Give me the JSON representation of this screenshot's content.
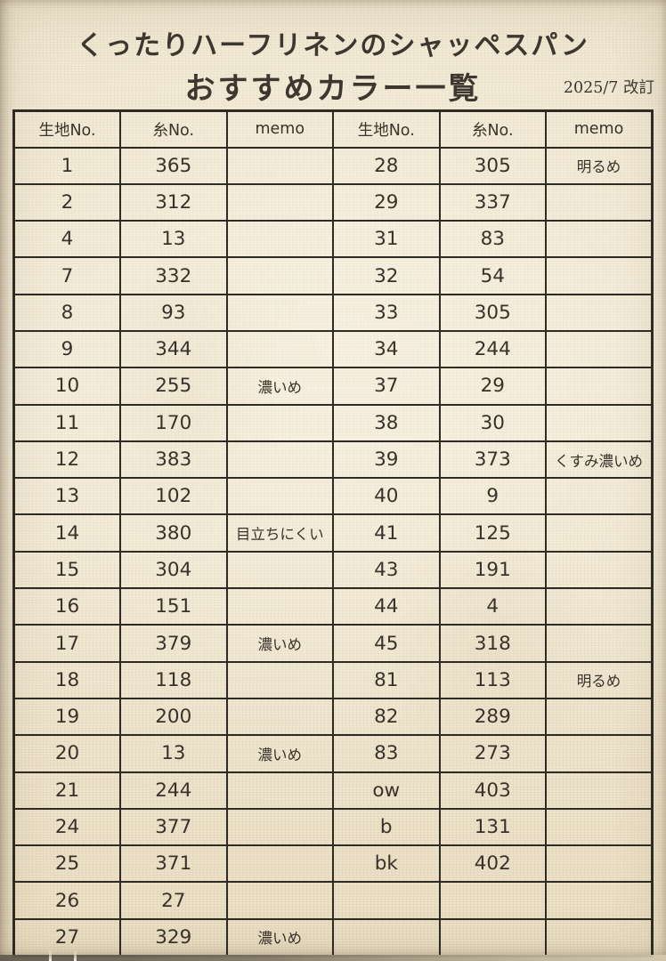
{
  "header": {
    "title_line1": "くったりハーフリネンのシャッペスパン",
    "title_line2": "おすすめカラー一覧",
    "revision": "2025/7 改訂"
  },
  "table": {
    "headers": [
      "生地No.",
      "糸No.",
      "memo",
      "生地No.",
      "糸No.",
      "memo"
    ],
    "rows": [
      [
        "1",
        "365",
        "",
        "28",
        "305",
        "明るめ"
      ],
      [
        "2",
        "312",
        "",
        "29",
        "337",
        ""
      ],
      [
        "4",
        "13",
        "",
        "31",
        "83",
        ""
      ],
      [
        "7",
        "332",
        "",
        "32",
        "54",
        ""
      ],
      [
        "8",
        "93",
        "",
        "33",
        "305",
        ""
      ],
      [
        "9",
        "344",
        "",
        "34",
        "244",
        ""
      ],
      [
        "10",
        "255",
        "濃いめ",
        "37",
        "29",
        ""
      ],
      [
        "11",
        "170",
        "",
        "38",
        "30",
        ""
      ],
      [
        "12",
        "383",
        "",
        "39",
        "373",
        "くすみ濃いめ"
      ],
      [
        "13",
        "102",
        "",
        "40",
        "9",
        ""
      ],
      [
        "14",
        "380",
        "目立ちにくい",
        "41",
        "125",
        ""
      ],
      [
        "15",
        "304",
        "",
        "43",
        "191",
        ""
      ],
      [
        "16",
        "151",
        "",
        "44",
        "4",
        ""
      ],
      [
        "17",
        "379",
        "濃いめ",
        "45",
        "318",
        ""
      ],
      [
        "18",
        "118",
        "",
        "81",
        "113",
        "明るめ"
      ],
      [
        "19",
        "200",
        "",
        "82",
        "289",
        ""
      ],
      [
        "20",
        "13",
        "濃いめ",
        "83",
        "273",
        ""
      ],
      [
        "21",
        "244",
        "",
        "ow",
        "403",
        ""
      ],
      [
        "24",
        "377",
        "",
        "b",
        "131",
        ""
      ],
      [
        "25",
        "371",
        "",
        "bk",
        "402",
        ""
      ],
      [
        "26",
        "27",
        "",
        "",
        "",
        ""
      ],
      [
        "27",
        "329",
        "濃いめ",
        "",
        "",
        ""
      ]
    ]
  },
  "colors": {
    "paper": "#f1e8d4",
    "paper_shade": "#e7dabe",
    "ink": "#39332b",
    "border": "#2e2b25",
    "bottom_edge": "#5f594e"
  }
}
